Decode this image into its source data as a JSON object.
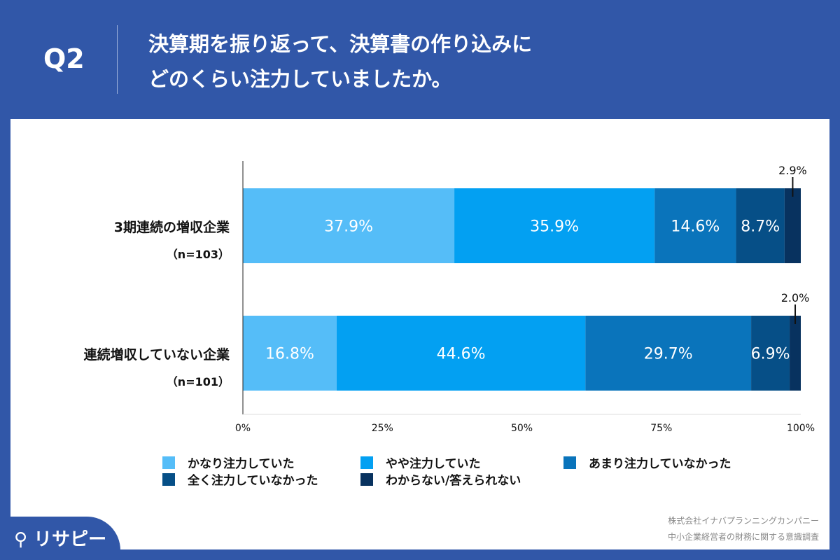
{
  "header": {
    "q": "Q2",
    "title_lines": [
      "決算期を振り返って、決算書の作り込みに",
      "どのくらい注力していましたか。"
    ]
  },
  "chart_data": {
    "type": "bar",
    "orientation": "horizontal",
    "stacked": true,
    "categories": [
      "3期連続の増収企業",
      "連続増収していない企業"
    ],
    "category_n": [
      "（n=103）",
      "（n=101）"
    ],
    "series": [
      {
        "name": "かなり注力していた",
        "values": [
          37.9,
          16.8
        ],
        "color": "#55bdf8"
      },
      {
        "name": "やや注力していた",
        "values": [
          35.9,
          44.6
        ],
        "color": "#03a0f2"
      },
      {
        "name": "あまり注力していなかった",
        "values": [
          14.6,
          29.7
        ],
        "color": "#0a74bb"
      },
      {
        "name": "全く注力していなかった",
        "values": [
          8.7,
          6.9
        ],
        "color": "#064f87"
      },
      {
        "name": "わからない/答えられない",
        "values": [
          2.9,
          2.0
        ],
        "color": "#08325f"
      }
    ],
    "xlim": [
      0,
      100
    ],
    "xticks": [
      "0%",
      "25%",
      "50%",
      "75%",
      "100%"
    ],
    "legend": "bottom"
  },
  "footer": {
    "source_lines": [
      "株式会社イナバプランニングカンパニー",
      "中小企業経営者の財務に関する意識調査"
    ],
    "logo": "リサピー"
  }
}
